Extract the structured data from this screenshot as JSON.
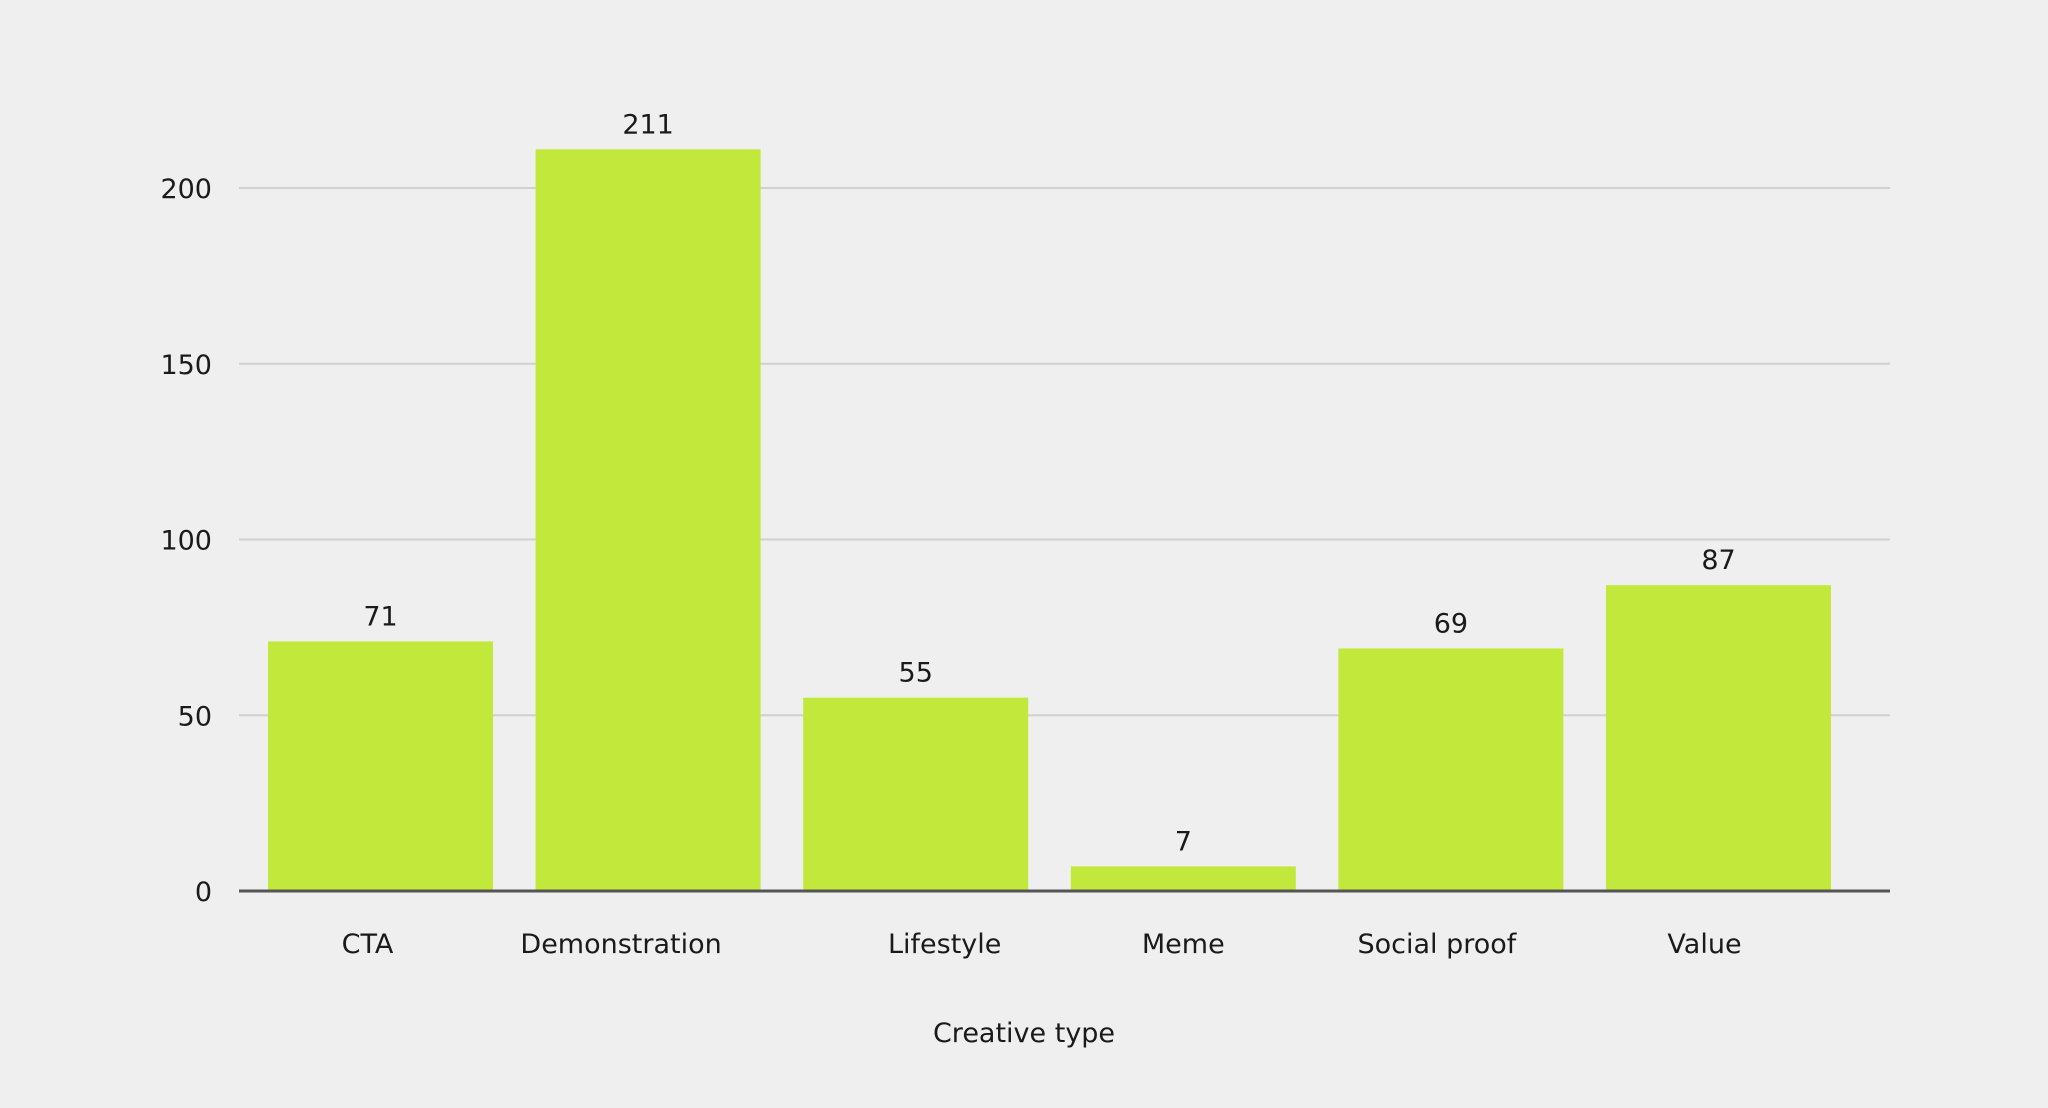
{
  "chart_data": {
    "type": "bar",
    "title": "",
    "xlabel": "Creative type",
    "ylabel": "",
    "categories": [
      "CTA",
      "Demonstration",
      "Lifestyle",
      "Meme",
      "Social proof",
      "Value"
    ],
    "values": [
      71,
      211,
      55,
      7,
      69,
      87
    ],
    "data_labels": [
      "71",
      "211",
      "55",
      "7",
      "69",
      "87"
    ],
    "ylim": [
      0,
      200
    ],
    "yticks": [
      0,
      50,
      100,
      150,
      200
    ],
    "ytick_labels": [
      "0",
      "50",
      "100",
      "150",
      "200"
    ],
    "grid": true,
    "legend": "none",
    "colors": {
      "bar": "#c2e83c",
      "grid": "#d0d0d0",
      "axis": "#555555",
      "background": "#efefef"
    }
  }
}
